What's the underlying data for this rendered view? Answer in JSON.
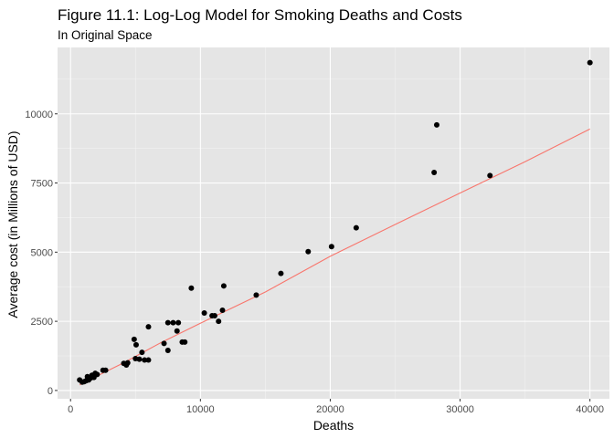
{
  "chart_data": {
    "type": "scatter",
    "title": "Figure 11.1: Log-Log Model for Smoking Deaths and Costs",
    "subtitle": "In Original Space",
    "xlabel": "Deaths",
    "ylabel": "Average cost (in Millions of USD)",
    "xlim": [
      -1000,
      41500
    ],
    "ylim": [
      -300,
      12400
    ],
    "x_ticks": [
      0,
      10000,
      20000,
      30000,
      40000
    ],
    "x_tick_labels": [
      "0",
      "10000",
      "20000",
      "30000",
      "40000"
    ],
    "y_ticks": [
      0,
      2500,
      5000,
      7500,
      10000
    ],
    "y_tick_labels": [
      "0",
      "2500",
      "5000",
      "7500",
      "10000"
    ],
    "grid": true,
    "panel_background": "#e5e5e5",
    "point_color": "#000000",
    "fit_line_color": "#f8766d",
    "points": [
      {
        "x": 700,
        "y": 380
      },
      {
        "x": 900,
        "y": 300
      },
      {
        "x": 1050,
        "y": 320
      },
      {
        "x": 1200,
        "y": 350
      },
      {
        "x": 1300,
        "y": 500
      },
      {
        "x": 1400,
        "y": 380
      },
      {
        "x": 1550,
        "y": 450
      },
      {
        "x": 1650,
        "y": 550
      },
      {
        "x": 1800,
        "y": 470
      },
      {
        "x": 1900,
        "y": 620
      },
      {
        "x": 2050,
        "y": 580
      },
      {
        "x": 2500,
        "y": 730
      },
      {
        "x": 2700,
        "y": 730
      },
      {
        "x": 4100,
        "y": 980
      },
      {
        "x": 4300,
        "y": 920
      },
      {
        "x": 4400,
        "y": 1000
      },
      {
        "x": 4900,
        "y": 1850
      },
      {
        "x": 5050,
        "y": 1650
      },
      {
        "x": 5000,
        "y": 1150
      },
      {
        "x": 5300,
        "y": 1130
      },
      {
        "x": 5500,
        "y": 1380
      },
      {
        "x": 5700,
        "y": 1100
      },
      {
        "x": 6000,
        "y": 2300
      },
      {
        "x": 6000,
        "y": 1100
      },
      {
        "x": 7200,
        "y": 1700
      },
      {
        "x": 7500,
        "y": 2450
      },
      {
        "x": 7500,
        "y": 1450
      },
      {
        "x": 7900,
        "y": 2450
      },
      {
        "x": 8200,
        "y": 2150
      },
      {
        "x": 8300,
        "y": 2450
      },
      {
        "x": 8600,
        "y": 1750
      },
      {
        "x": 8800,
        "y": 1750
      },
      {
        "x": 9300,
        "y": 3700
      },
      {
        "x": 10300,
        "y": 2800
      },
      {
        "x": 10900,
        "y": 2700
      },
      {
        "x": 11100,
        "y": 2700
      },
      {
        "x": 11400,
        "y": 2500
      },
      {
        "x": 11700,
        "y": 2900
      },
      {
        "x": 11800,
        "y": 3780
      },
      {
        "x": 14300,
        "y": 3450
      },
      {
        "x": 16200,
        "y": 4230
      },
      {
        "x": 18300,
        "y": 5020
      },
      {
        "x": 20100,
        "y": 5200
      },
      {
        "x": 22000,
        "y": 5880
      },
      {
        "x": 28000,
        "y": 7880
      },
      {
        "x": 28200,
        "y": 9600
      },
      {
        "x": 32300,
        "y": 7770
      },
      {
        "x": 40000,
        "y": 11850
      }
    ],
    "fit_line": [
      {
        "x": 700,
        "y": 200
      },
      {
        "x": 2000,
        "y": 510
      },
      {
        "x": 4000,
        "y": 980
      },
      {
        "x": 7000,
        "y": 1740
      },
      {
        "x": 10000,
        "y": 2430
      },
      {
        "x": 15000,
        "y": 3560
      },
      {
        "x": 20000,
        "y": 4850
      },
      {
        "x": 25000,
        "y": 6000
      },
      {
        "x": 30000,
        "y": 7140
      },
      {
        "x": 35000,
        "y": 8270
      },
      {
        "x": 40000,
        "y": 9450
      }
    ]
  }
}
